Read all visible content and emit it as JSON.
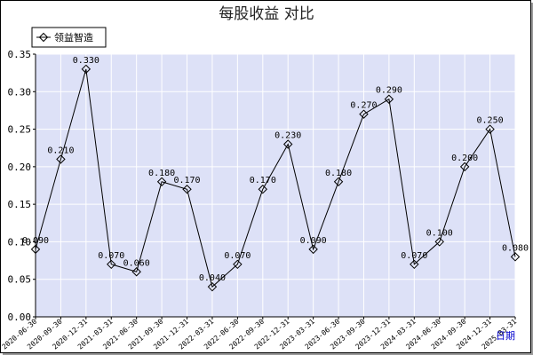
{
  "chart_data": {
    "type": "line",
    "title": "每股收益  对比",
    "xlabel": "日期",
    "ylabel": "",
    "ylim": [
      0,
      0.35
    ],
    "yticks": [
      "0.00",
      "0.05",
      "0.10",
      "0.15",
      "0.20",
      "0.25",
      "0.30",
      "0.35"
    ],
    "grid": true,
    "legend_position": "top-left",
    "categories": [
      "2020-06-30",
      "2020-09-30",
      "2020-12-31",
      "2021-03-31",
      "2021-06-30",
      "2021-09-30",
      "2021-12-31",
      "2022-03-31",
      "2022-06-30",
      "2022-09-30",
      "2022-12-31",
      "2023-03-31",
      "2023-06-30",
      "2023-09-30",
      "2023-12-31",
      "2024-03-31",
      "2024-06-30",
      "2024-09-30",
      "2024-12-31",
      "2025-03-31"
    ],
    "series": [
      {
        "name": "领益智造",
        "values": [
          0.09,
          0.21,
          0.33,
          0.07,
          0.06,
          0.18,
          0.17,
          0.04,
          0.07,
          0.17,
          0.23,
          0.09,
          0.18,
          0.27,
          0.29,
          0.07,
          0.1,
          0.2,
          0.25,
          0.08
        ],
        "labels": [
          "0.090",
          "0.210",
          "0.330",
          "0.070",
          "0.060",
          "0.180",
          "0.170",
          "0.040",
          "0.070",
          "0.170",
          "0.230",
          "0.090",
          "0.180",
          "0.270",
          "0.290",
          "0.070",
          "0.100",
          "0.200",
          "0.250",
          "0.080"
        ]
      }
    ],
    "colors": {
      "plot_background": "#dde1f7",
      "grid": "#ffffff",
      "line": "#000000"
    }
  }
}
